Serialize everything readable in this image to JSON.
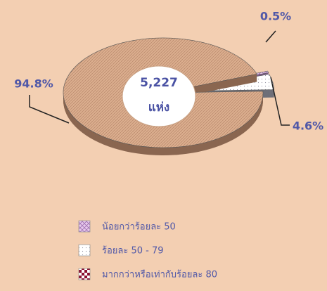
{
  "chart_data": {
    "type": "pie",
    "categories": [
      "น้อยกว่าร้อยละ 50",
      "ร้อยละ 50 - 79",
      "มากกว่าหรือเท่ากับร้อยละ 80"
    ],
    "values": [
      0.5,
      4.6,
      94.8
    ],
    "value_labels": [
      "0.5%",
      "4.6%",
      "94.8%"
    ],
    "colors": [
      "#d9b3e3",
      "#ffffff",
      "#d7a989"
    ],
    "center_text": [
      "5,227",
      "แห่ง"
    ]
  }
}
